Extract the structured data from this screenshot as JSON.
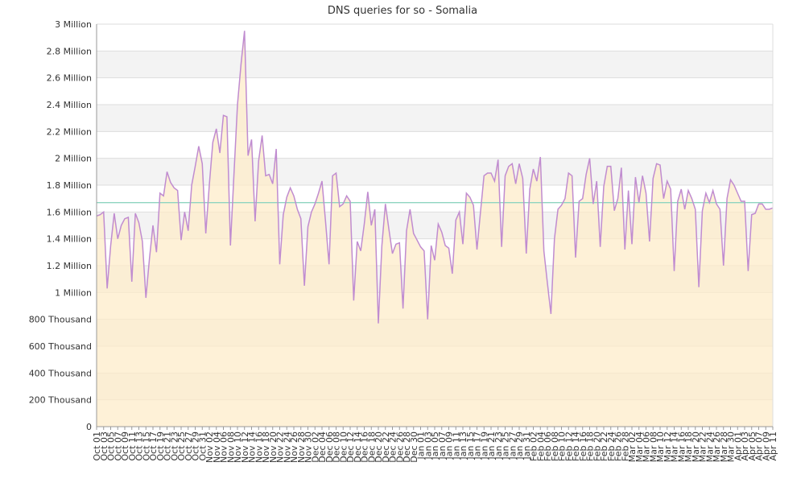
{
  "chart_data": {
    "type": "area",
    "title": "DNS queries for so - Somalia",
    "xlabel": "",
    "ylabel": "",
    "ylim": [
      0,
      3000000
    ],
    "y_ticks": [
      0,
      200000,
      400000,
      600000,
      800000,
      1000000,
      1200000,
      1400000,
      1600000,
      1800000,
      2000000,
      2200000,
      2400000,
      2600000,
      2800000,
      3000000
    ],
    "y_tick_labels": [
      "0",
      "200 Thousand",
      "400 Thousand",
      "600 Thousand",
      "800 Thousand",
      "1 Million",
      "1.2 Million",
      "1.4 Million",
      "1.6 Million",
      "1.8 Million",
      "2 Million",
      "2.2 Million",
      "2.4 Million",
      "2.6 Million",
      "2.8 Million",
      "3 Million"
    ],
    "x_start": "Oct 01",
    "x_end": "Apr 11",
    "x_tick_labels": [
      "Oct 01",
      "Oct 03",
      "Oct 05",
      "Oct 07",
      "Oct 09",
      "Oct 11",
      "Oct 13",
      "Oct 15",
      "Oct 17",
      "Oct 19",
      "Oct 21",
      "Oct 23",
      "Oct 25",
      "Oct 27",
      "Oct 29",
      "Oct 31",
      "Nov 02",
      "Nov 04",
      "Nov 06",
      "Nov 08",
      "Nov 10",
      "Nov 12",
      "Nov 14",
      "Nov 16",
      "Nov 18",
      "Nov 20",
      "Nov 22",
      "Nov 24",
      "Nov 26",
      "Nov 28",
      "Nov 30",
      "Dec 02",
      "Dec 04",
      "Dec 06",
      "Dec 08",
      "Dec 10",
      "Dec 12",
      "Dec 14",
      "Dec 16",
      "Dec 18",
      "Dec 20",
      "Dec 22",
      "Dec 24",
      "Dec 26",
      "Dec 28",
      "Dec 30",
      "Jan 01",
      "Jan 03",
      "Jan 05",
      "Jan 07",
      "Jan 09",
      "Jan 11",
      "Jan 13",
      "Jan 15",
      "Jan 17",
      "Jan 19",
      "Jan 21",
      "Jan 23",
      "Jan 25",
      "Jan 27",
      "Jan 29",
      "Jan 31",
      "Feb 02",
      "Feb 04",
      "Feb 06",
      "Feb 08",
      "Feb 10",
      "Feb 12",
      "Feb 14",
      "Feb 16",
      "Feb 18",
      "Feb 20",
      "Feb 22",
      "Feb 24",
      "Feb 26",
      "Feb 28",
      "Mar 02",
      "Mar 04",
      "Mar 06",
      "Mar 08",
      "Mar 10",
      "Mar 12",
      "Mar 14",
      "Mar 16",
      "Mar 18",
      "Mar 20",
      "Mar 22",
      "Mar 24",
      "Mar 26",
      "Mar 28",
      "Mar 30",
      "Apr 01",
      "Apr 03",
      "Apr 05",
      "Apr 07",
      "Apr 09",
      "Apr 11"
    ],
    "average": 1670000,
    "series": [
      {
        "values": [
          1570000,
          1580000,
          1600000,
          1030000,
          1350000,
          1590000,
          1400000,
          1500000,
          1550000,
          1560000,
          1080000,
          1590000,
          1520000,
          1380000,
          960000,
          1250000,
          1500000,
          1300000,
          1740000,
          1720000,
          1900000,
          1820000,
          1780000,
          1760000,
          1390000,
          1600000,
          1460000,
          1800000,
          1940000,
          2090000,
          1960000,
          1440000,
          1800000,
          2120000,
          2220000,
          2040000,
          2320000,
          2310000,
          1350000,
          1880000,
          2400000,
          2700000,
          2950000,
          2020000,
          2140000,
          1530000,
          1980000,
          2170000,
          1870000,
          1880000,
          1810000,
          2070000,
          1210000,
          1580000,
          1710000,
          1780000,
          1720000,
          1620000,
          1550000,
          1050000,
          1490000,
          1600000,
          1660000,
          1740000,
          1830000,
          1530000,
          1210000,
          1870000,
          1890000,
          1640000,
          1660000,
          1720000,
          1680000,
          940000,
          1380000,
          1310000,
          1510000,
          1750000,
          1500000,
          1620000,
          770000,
          1350000,
          1660000,
          1470000,
          1290000,
          1360000,
          1370000,
          880000,
          1460000,
          1620000,
          1440000,
          1390000,
          1340000,
          1310000,
          800000,
          1350000,
          1240000,
          1510000,
          1450000,
          1350000,
          1330000,
          1140000,
          1540000,
          1600000,
          1360000,
          1740000,
          1710000,
          1650000,
          1320000,
          1600000,
          1870000,
          1890000,
          1890000,
          1830000,
          1990000,
          1340000,
          1870000,
          1940000,
          1960000,
          1810000,
          1960000,
          1850000,
          1290000,
          1770000,
          1920000,
          1830000,
          2010000,
          1310000,
          1070000,
          840000,
          1400000,
          1620000,
          1650000,
          1700000,
          1890000,
          1870000,
          1260000,
          1680000,
          1700000,
          1880000,
          2000000,
          1660000,
          1830000,
          1340000,
          1790000,
          1940000,
          1940000,
          1610000,
          1700000,
          1930000,
          1320000,
          1760000,
          1360000,
          1860000,
          1670000,
          1870000,
          1740000,
          1380000,
          1850000,
          1960000,
          1950000,
          1700000,
          1830000,
          1770000,
          1160000,
          1680000,
          1770000,
          1620000,
          1760000,
          1700000,
          1620000,
          1040000,
          1610000,
          1740000,
          1670000,
          1760000,
          1660000,
          1620000,
          1200000,
          1700000,
          1840000,
          1800000,
          1740000,
          1680000,
          1680000,
          1160000,
          1580000,
          1590000,
          1660000,
          1660000,
          1620000,
          1620000,
          1630000
        ]
      }
    ],
    "colors": {
      "line": "#c08cd0",
      "fill": "#fdecc8",
      "average_line": "#8fd4c0",
      "band": "#f3f3f3",
      "grid": "#dddddd",
      "axis": "#999999"
    }
  }
}
